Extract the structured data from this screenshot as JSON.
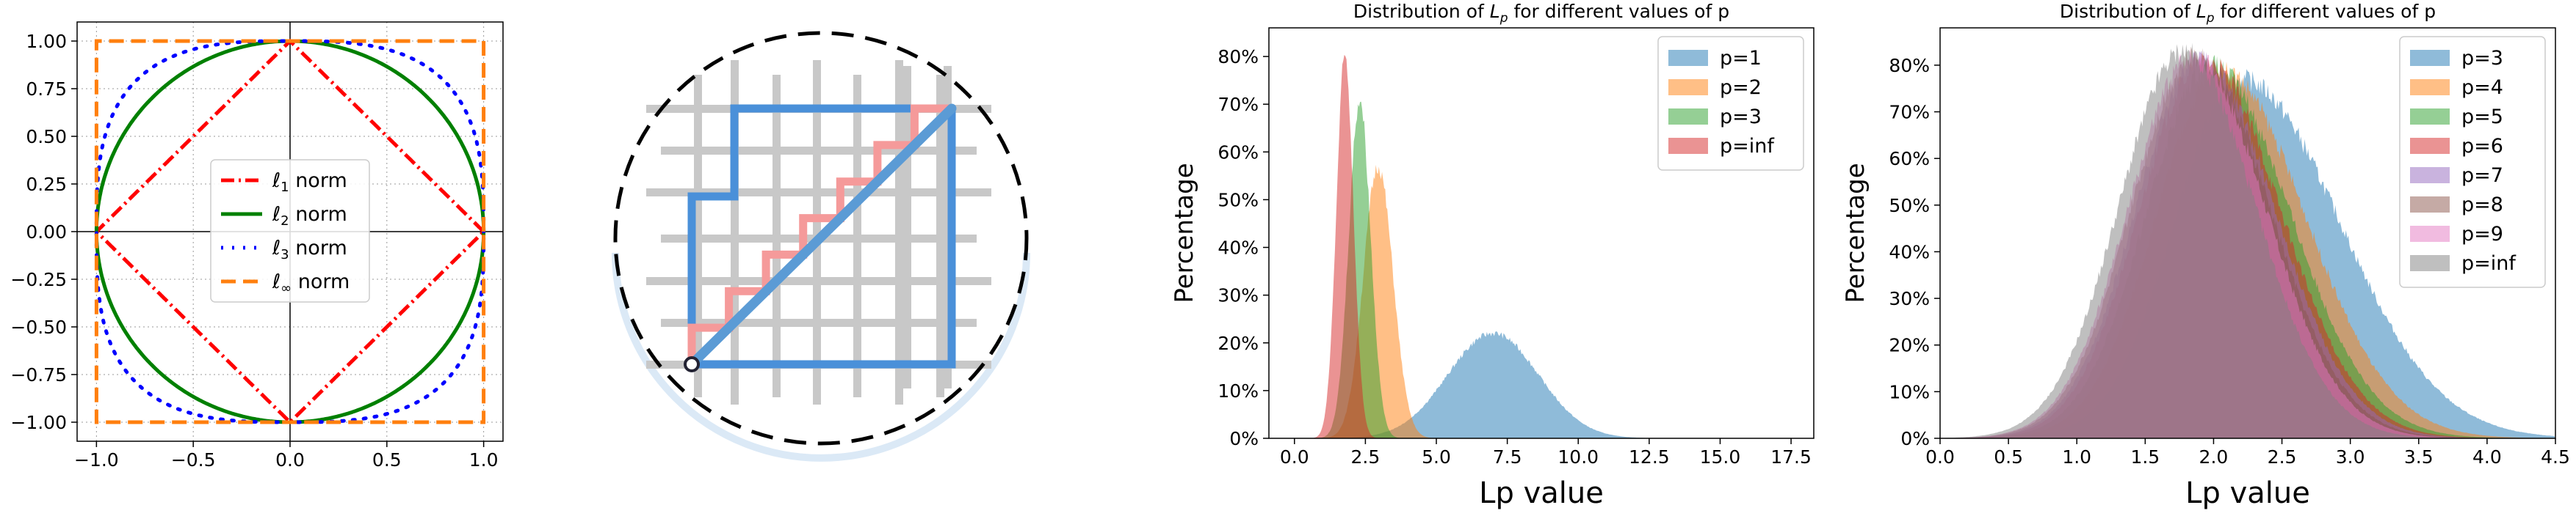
{
  "colors": {
    "l1": "#ff0000",
    "l2": "#008000",
    "l3": "#0000ff",
    "linf": "#ff7f0e",
    "grid_bars": "#c8c8c8",
    "path_blue": "#4a90d9",
    "path_red": "#f59a9a",
    "diag": "#5b9bd5",
    "c_blue": "#1f77b4",
    "c_orange": "#ff7f0e",
    "c_green": "#2ca02c",
    "c_red": "#d62728",
    "c_purple": "#9467bd",
    "c_brown": "#8c564b",
    "c_pink": "#e377c2",
    "c_gray": "#7f7f7f"
  },
  "chart_data": [
    {
      "type": "line",
      "title": "",
      "xlim": [
        -1.1,
        1.1
      ],
      "ylim": [
        -1.1,
        1.1
      ],
      "grid": true,
      "legend_position": "center",
      "x_ticks": [
        "−1.0",
        "−0.5",
        "0.0",
        "0.5",
        "1.0"
      ],
      "y_ticks": [
        "1.00",
        "0.75",
        "0.50",
        "0.25",
        "0.00",
        "−0.25",
        "−0.50",
        "−0.75",
        "−1.00"
      ],
      "series": [
        {
          "name_prefix": "ℓ",
          "sub": "1",
          "suffix": " norm",
          "p": 1,
          "style": "dashdot",
          "color": "#ff0000"
        },
        {
          "name_prefix": "ℓ",
          "sub": "2",
          "suffix": " norm",
          "p": 2,
          "style": "solid",
          "color": "#008000"
        },
        {
          "name_prefix": "ℓ",
          "sub": "3",
          "suffix": " norm",
          "p": 3,
          "style": "dotted",
          "color": "#0000ff"
        },
        {
          "name_prefix": "ℓ",
          "sub": "∞",
          "suffix": " norm",
          "p": "inf",
          "style": "dashed",
          "color": "#ff7f0e"
        }
      ]
    },
    {
      "type": "diagram",
      "description_grid": "city-block grid with staircase and diagonal paths inside a dashed circle"
    },
    {
      "type": "area",
      "title_prefix": "Distribution of ",
      "title_var": "L",
      "title_sub": "p",
      "title_suffix": " for different values of p",
      "xlabel": "Lp value",
      "ylabel": "Percentage",
      "xlim": [
        -0.9,
        18.3
      ],
      "ylim": [
        0,
        86
      ],
      "x_ticks": [
        0.0,
        2.5,
        5.0,
        7.5,
        10.0,
        12.5,
        15.0,
        17.5
      ],
      "y_ticks": [
        0,
        10,
        20,
        30,
        40,
        50,
        60,
        70,
        80
      ],
      "legend_position": "top-right",
      "series": [
        {
          "name": "p=1",
          "color": "#1f77b4",
          "mean": 7.0,
          "sd": 1.6,
          "peak": 22
        },
        {
          "name": "p=2",
          "color": "#ff7f0e",
          "mean": 2.95,
          "sd": 0.52,
          "peak": 57
        },
        {
          "name": "p=3",
          "color": "#2ca02c",
          "mean": 2.3,
          "sd": 0.38,
          "peak": 71
        },
        {
          "name": "p=inf",
          "color": "#d62728",
          "mean": 1.78,
          "sd": 0.3,
          "peak": 80
        }
      ]
    },
    {
      "type": "area",
      "title_prefix": "Distribution of ",
      "title_var": "L",
      "title_sub": "p",
      "title_suffix": " for different values of p",
      "xlabel": "Lp value",
      "ylabel": "Percentage",
      "xlim": [
        0.0,
        4.5
      ],
      "ylim": [
        0,
        88
      ],
      "x_ticks": [
        0.0,
        0.5,
        1.0,
        1.5,
        2.0,
        2.5,
        3.0,
        3.5,
        4.0,
        4.5
      ],
      "y_ticks": [
        0,
        10,
        20,
        30,
        40,
        50,
        60,
        70,
        80
      ],
      "legend_position": "top-right",
      "series": [
        {
          "name": "p=3",
          "color": "#1f77b4",
          "mode": 2.2,
          "sl": 0.48,
          "sr": 0.72,
          "peak": 77
        },
        {
          "name": "p=4",
          "color": "#ff7f0e",
          "mode": 2.05,
          "sl": 0.47,
          "sr": 0.62,
          "peak": 79
        },
        {
          "name": "p=5",
          "color": "#2ca02c",
          "mode": 1.98,
          "sl": 0.47,
          "sr": 0.58,
          "peak": 80
        },
        {
          "name": "p=6",
          "color": "#d62728",
          "mode": 1.93,
          "sl": 0.47,
          "sr": 0.56,
          "peak": 81
        },
        {
          "name": "p=7",
          "color": "#9467bd",
          "mode": 1.9,
          "sl": 0.47,
          "sr": 0.55,
          "peak": 81
        },
        {
          "name": "p=8",
          "color": "#8c564b",
          "mode": 1.87,
          "sl": 0.47,
          "sr": 0.54,
          "peak": 82
        },
        {
          "name": "p=9",
          "color": "#e377c2",
          "mode": 1.85,
          "sl": 0.47,
          "sr": 0.53,
          "peak": 82
        },
        {
          "name": "p=inf",
          "color": "#7f7f7f",
          "mode": 1.78,
          "sl": 0.47,
          "sr": 0.52,
          "peak": 83
        }
      ]
    }
  ]
}
